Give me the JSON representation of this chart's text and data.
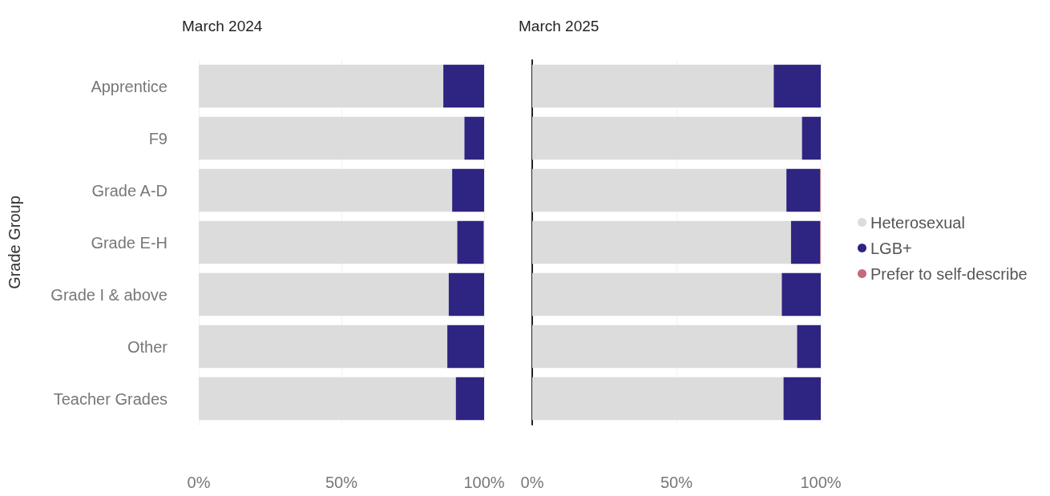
{
  "chart_data": [
    {
      "type": "bar",
      "title": "March 2024",
      "ylabel": "Grade Group",
      "orientation": "horizontal",
      "stacked": true,
      "categories": [
        "Apprentice",
        "F9",
        "Grade A-D",
        "Grade E-H",
        "Grade I & above",
        "Other",
        "Teacher Grades"
      ],
      "series": [
        {
          "color": "#dcdcdc",
          "values": [
            85.7,
            93.1,
            88.8,
            90.6,
            87.6,
            87.1,
            90.1
          ]
        },
        {
          "color": "#2e2482",
          "values": [
            14.3,
            6.9,
            11.2,
            9.2,
            12.4,
            12.9,
            9.9
          ]
        },
        {
          "color": "#c26b7a",
          "values": [
            0,
            0,
            0,
            0.2,
            0,
            0,
            0
          ]
        }
      ],
      "xlim": [
        0,
        100
      ],
      "xticks": [
        {
          "value": 0,
          "label": "0%"
        },
        {
          "value": 50,
          "label": "50%"
        },
        {
          "value": 100,
          "label": "100%"
        }
      ],
      "grid": "x",
      "legend": false
    },
    {
      "type": "bar",
      "title": "March 2025",
      "orientation": "horizontal",
      "stacked": true,
      "categories": [
        null,
        null,
        null,
        null,
        null,
        null,
        null
      ],
      "series": [
        {
          "name": "Heterosexual",
          "color": "#dcdcdc",
          "values": [
            83.7,
            93.5,
            88.1,
            89.7,
            86.5,
            91.8,
            87.1
          ]
        },
        {
          "name": "LGB+",
          "color": "#2e2482",
          "values": [
            16.3,
            6.5,
            11.7,
            10.1,
            13.5,
            8.2,
            12.9
          ]
        },
        {
          "name": "Prefer to self-describe",
          "color": "#c26b7a",
          "values": [
            0,
            0,
            0.2,
            0.2,
            0,
            0,
            0
          ]
        }
      ],
      "xlim": [
        0,
        100
      ],
      "xticks": [
        {
          "value": 0,
          "label": "0%"
        },
        {
          "value": 50,
          "label": "50%"
        },
        {
          "value": 100,
          "label": "100%"
        }
      ],
      "grid": "x",
      "legend": "right",
      "tick_labels": "x"
    }
  ]
}
